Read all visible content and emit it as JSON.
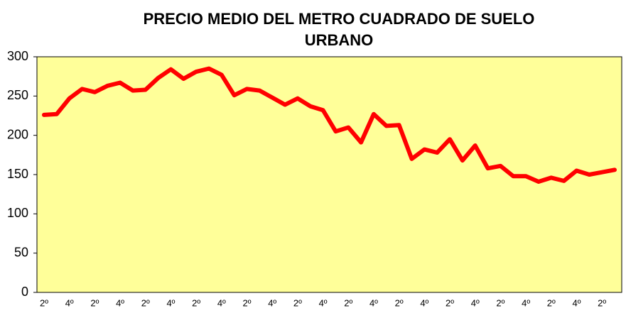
{
  "chart_data": {
    "type": "line",
    "title": [
      "PRECIO MEDIO DEL METRO CUADRADO  DE SUELO",
      "URBANO"
    ],
    "categories": [
      "2º",
      null,
      "4º",
      null,
      "2º",
      null,
      "4º",
      null,
      "2º",
      null,
      "4º",
      null,
      "2º",
      null,
      "4º",
      null,
      "2º",
      null,
      "4º",
      null,
      "2º",
      null,
      "4º",
      null,
      "2º",
      null,
      "4º",
      null,
      "2º",
      null,
      "4º",
      null,
      "2º",
      null,
      "4º",
      null,
      "2º",
      null,
      "4º",
      null,
      "2º",
      null,
      "4º",
      null,
      "2º",
      null
    ],
    "values": [
      226,
      227,
      247,
      259,
      255,
      263,
      267,
      257,
      258,
      273,
      284,
      272,
      281,
      285,
      277,
      251,
      259,
      257,
      248,
      239,
      247,
      237,
      232,
      205,
      210,
      191,
      227,
      212,
      213,
      170,
      182,
      178,
      195,
      168,
      187,
      158,
      161,
      148,
      148,
      141,
      146,
      142,
      155,
      150,
      153,
      156
    ],
    "color": "#ff0000",
    "plot_background": "#ffff99",
    "ylim": [
      0,
      300
    ],
    "yticks": [
      0,
      50,
      100,
      150,
      200,
      250,
      300
    ],
    "grid": false
  }
}
